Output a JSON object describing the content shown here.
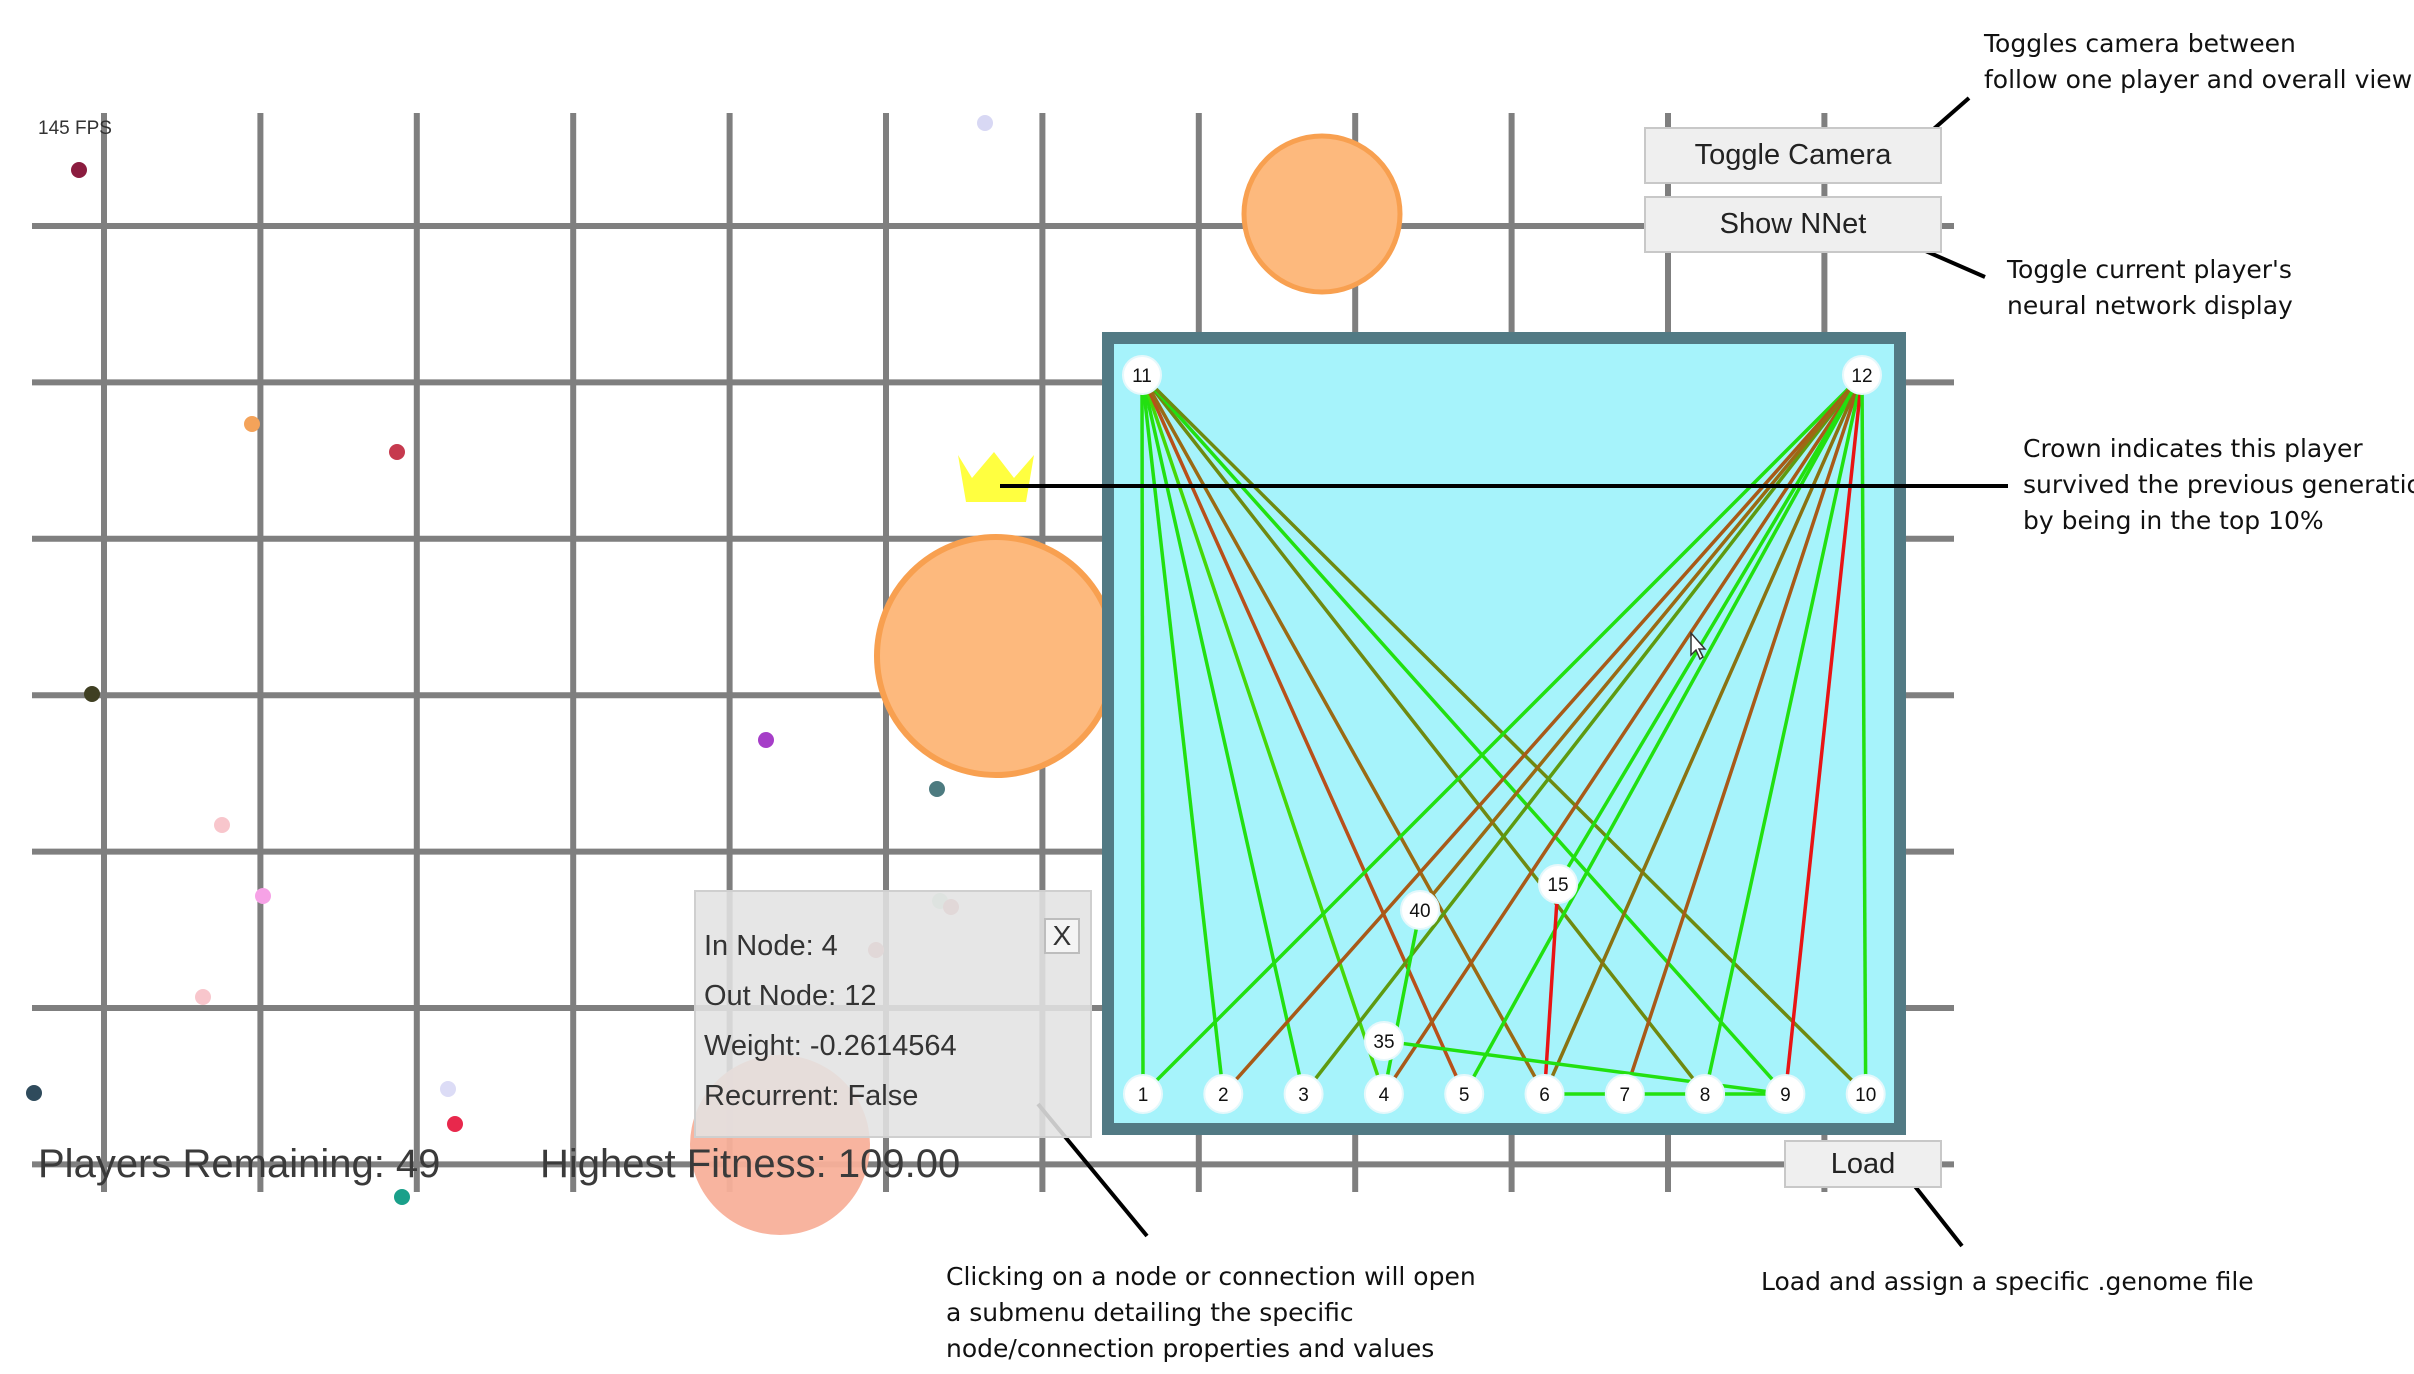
{
  "hud": {
    "fps": "145 FPS",
    "players_remaining": "Players Remaining: 49",
    "highest_fitness": "Highest Fitness: 109.00"
  },
  "buttons": {
    "toggle_camera": "Toggle Camera",
    "show_nnet": "Show NNet",
    "load": "Load"
  },
  "submenu": {
    "in_node": "In Node: 4",
    "out_node": "Out Node: 12",
    "weight": "Weight: -0.2614564",
    "recurrent": "Recurrent: False",
    "close": "X"
  },
  "annotations": {
    "toggle_camera": [
      "Toggles camera between",
      "follow one player and overall view"
    ],
    "show_nnet": [
      "Toggle current player's",
      "neural network display"
    ],
    "crown": [
      "Crown indicates this player",
      "survived the previous generation",
      "by being in the top 10%"
    ],
    "submenu": [
      "Clicking on a node or connection will open",
      "a submenu detailing the specific",
      "node/connection properties and values"
    ],
    "load": [
      "Load and assign a specific .genome file"
    ]
  },
  "network": {
    "input_nodes": [
      "1",
      "2",
      "3",
      "4",
      "5",
      "6",
      "7",
      "8",
      "9",
      "10"
    ],
    "output_nodes": [
      "11",
      "12"
    ],
    "hidden_nodes": [
      "15",
      "40",
      "35"
    ],
    "connections": [
      {
        "from": "1",
        "to": "11",
        "color": "#22e010"
      },
      {
        "from": "2",
        "to": "11",
        "color": "#22e010"
      },
      {
        "from": "3",
        "to": "11",
        "color": "#22e010"
      },
      {
        "from": "4",
        "to": "11",
        "color": "#45d808"
      },
      {
        "from": "5",
        "to": "11",
        "color": "#b8501a"
      },
      {
        "from": "6",
        "to": "11",
        "color": "#9a6a14"
      },
      {
        "from": "8",
        "to": "11",
        "color": "#6e8a10"
      },
      {
        "from": "9",
        "to": "11",
        "color": "#22e010"
      },
      {
        "from": "10",
        "to": "11",
        "color": "#6e8a10"
      },
      {
        "from": "1",
        "to": "12",
        "color": "#22e010"
      },
      {
        "from": "2",
        "to": "12",
        "color": "#a85a18"
      },
      {
        "from": "3",
        "to": "12",
        "color": "#5e9a10"
      },
      {
        "from": "4",
        "to": "12",
        "color": "#a85a18"
      },
      {
        "from": "5",
        "to": "12",
        "color": "#22e010"
      },
      {
        "from": "6",
        "to": "12",
        "color": "#8a7212"
      },
      {
        "from": "7",
        "to": "12",
        "color": "#a85a18"
      },
      {
        "from": "8",
        "to": "12",
        "color": "#22e010"
      },
      {
        "from": "9",
        "to": "12",
        "color": "#e81414"
      },
      {
        "from": "10",
        "to": "12",
        "color": "#22e010"
      },
      {
        "from": "40",
        "to": "12",
        "color": "#9a6a14"
      },
      {
        "from": "15",
        "to": "12",
        "color": "#22e010"
      },
      {
        "from": "6",
        "to": "15",
        "color": "#e81414"
      },
      {
        "from": "4",
        "to": "40",
        "color": "#22e010"
      },
      {
        "from": "35",
        "to": "9",
        "color": "#22e010"
      },
      {
        "from": "6",
        "to": "9",
        "color": "#22e010"
      }
    ]
  },
  "colors": {
    "grid": "#7f7f7f",
    "network_bg": "#a6f3fb",
    "network_border": "#527a84",
    "player": "#fdb97d",
    "crown": "#ffff40"
  }
}
